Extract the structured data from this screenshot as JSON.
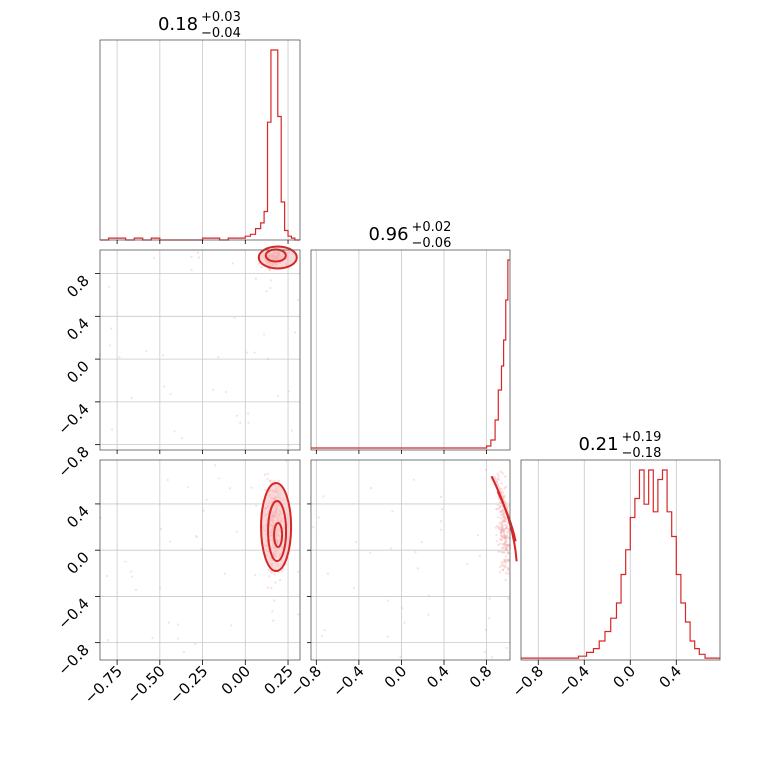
{
  "chart_data": {
    "type": "corner",
    "color": "#d62728",
    "parameters": [
      {
        "title": {
          "median": "0.18",
          "plus": "+0.03",
          "minus": "−0.04"
        },
        "range": [
          -0.85,
          0.32
        ],
        "ticks": [
          -0.75,
          -0.5,
          -0.25,
          0.0,
          0.25
        ],
        "tick_labels": [
          "−0.75",
          "−0.50",
          "−0.25",
          "0.00",
          "0.25"
        ],
        "hist_bins": [
          -0.85,
          -0.8,
          -0.75,
          -0.7,
          -0.65,
          -0.6,
          -0.55,
          -0.5,
          -0.45,
          -0.4,
          -0.35,
          -0.3,
          -0.25,
          -0.2,
          -0.15,
          -0.1,
          -0.05,
          0.0,
          0.03,
          0.06,
          0.09,
          0.11,
          0.13,
          0.15,
          0.17,
          0.19,
          0.21,
          0.23,
          0.25,
          0.27,
          0.29,
          0.32
        ],
        "hist_counts": [
          0,
          1,
          1,
          0,
          1,
          0,
          1,
          0,
          0,
          0,
          0,
          0,
          1,
          1,
          0,
          1,
          1,
          2,
          3,
          6,
          9,
          15,
          62,
          100,
          100,
          65,
          20,
          5,
          2,
          1,
          0
        ]
      },
      {
        "title": {
          "median": "0.96",
          "plus": "+0.02",
          "minus": "−0.06"
        },
        "range": [
          -0.85,
          1.02
        ],
        "ticks": [
          -0.8,
          -0.4,
          0.0,
          0.4,
          0.8
        ],
        "tick_labels": [
          "−0.8",
          "−0.4",
          "0.0",
          "0.4",
          "0.8"
        ],
        "hist_bins": [
          -0.85,
          -0.75,
          -0.65,
          -0.55,
          -0.45,
          -0.35,
          -0.25,
          -0.15,
          -0.05,
          0.05,
          0.15,
          0.25,
          0.35,
          0.45,
          0.55,
          0.65,
          0.75,
          0.8,
          0.84,
          0.88,
          0.91,
          0.94,
          0.96,
          0.98,
          1.0,
          1.02
        ],
        "hist_counts": [
          1,
          1,
          1,
          1,
          1,
          1,
          1,
          1,
          1,
          1,
          1,
          1,
          1,
          1,
          1,
          1,
          1,
          2,
          5,
          15,
          30,
          42,
          55,
          75,
          95
        ]
      },
      {
        "title": {
          "median": "0.21",
          "plus": "+0.19",
          "minus": "−0.18"
        },
        "range": [
          -0.95,
          0.78
        ],
        "ticks": [
          -0.8,
          -0.4,
          0.0,
          0.4
        ],
        "tick_labels": [
          "−0.8",
          "−0.4",
          "0.0",
          "0.4"
        ],
        "hist_bins": [
          -0.95,
          -0.85,
          -0.75,
          -0.65,
          -0.55,
          -0.45,
          -0.38,
          -0.32,
          -0.27,
          -0.22,
          -0.17,
          -0.12,
          -0.08,
          -0.04,
          0.0,
          0.04,
          0.08,
          0.12,
          0.16,
          0.2,
          0.24,
          0.28,
          0.32,
          0.36,
          0.4,
          0.44,
          0.48,
          0.52,
          0.56,
          0.6,
          0.65,
          0.7,
          0.78
        ],
        "hist_counts": [
          1,
          1,
          1,
          1,
          1,
          2,
          4,
          6,
          10,
          15,
          22,
          30,
          45,
          58,
          75,
          85,
          100,
          82,
          100,
          78,
          95,
          100,
          78,
          65,
          45,
          30,
          20,
          10,
          6,
          3,
          1,
          1
        ]
      }
    ],
    "y_axes": {
      "row2": {
        "ticks": [
          0.8,
          0.4,
          0.0,
          -0.4,
          -0.8
        ],
        "tick_labels": [
          "0.8",
          "0.4",
          "0.0",
          "−0.4",
          "−0.8"
        ]
      },
      "row3": {
        "ticks": [
          0.4,
          0.0,
          -0.4,
          -0.8
        ],
        "tick_labels": [
          "0.4",
          "0.0",
          "−0.4",
          "−0.8"
        ]
      }
    },
    "grid": true
  }
}
